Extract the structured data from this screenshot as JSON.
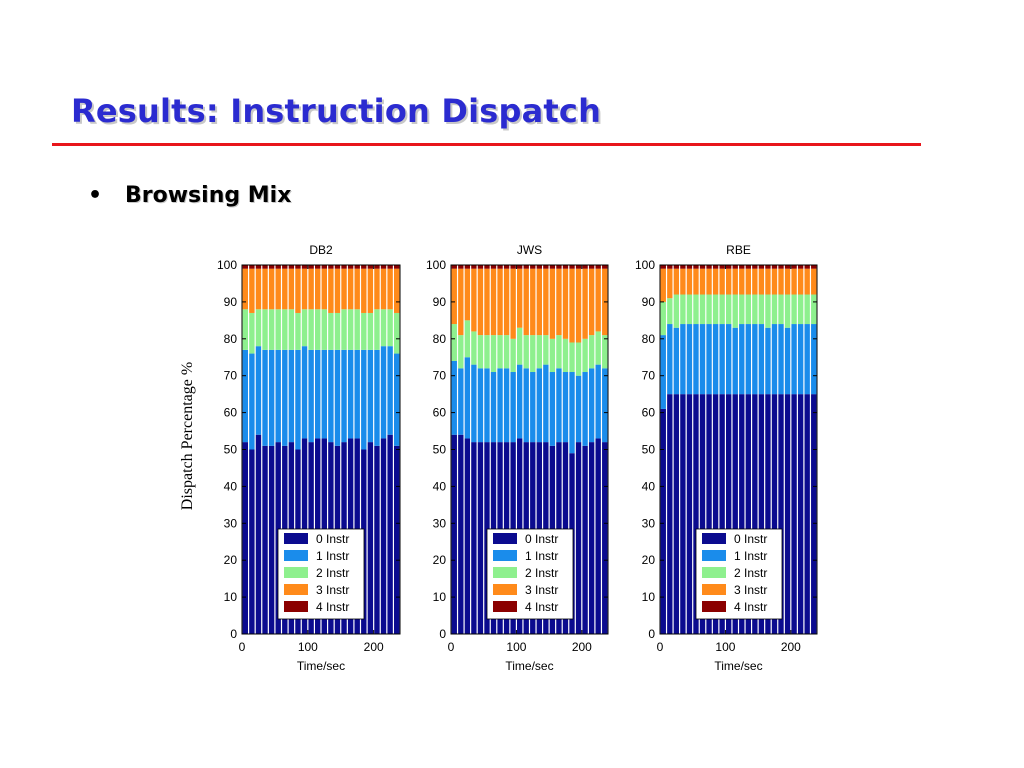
{
  "slide": {
    "title": "Results: Instruction Dispatch",
    "bullet": "Browsing Mix",
    "ylabel": "Dispatch Percentage %"
  },
  "colors": {
    "title": "#2b2bd0",
    "rule": "#e8151b",
    "series": [
      "#0b0b8f",
      "#1a8ceb",
      "#8ef08e",
      "#ff8a1a",
      "#8b0000"
    ]
  },
  "chart_data": [
    {
      "type": "bar",
      "stacked": true,
      "title": "DB2",
      "xlabel": "Time/sec",
      "ylabel": "Dispatch Percentage %",
      "ylim": [
        0,
        100
      ],
      "yticks": [
        0,
        10,
        20,
        30,
        40,
        50,
        60,
        70,
        80,
        90,
        100
      ],
      "xlim": [
        0,
        240
      ],
      "xticks": [
        0,
        100,
        200
      ],
      "legend": "bottom-center",
      "x": [
        5,
        15,
        25,
        35,
        45,
        55,
        65,
        75,
        85,
        95,
        105,
        115,
        125,
        135,
        145,
        155,
        165,
        175,
        185,
        195,
        205,
        215,
        225,
        235
      ],
      "series": [
        {
          "name": "0 Instr",
          "values": [
            52,
            50,
            54,
            51,
            51,
            52,
            51,
            52,
            50,
            53,
            52,
            53,
            53,
            52,
            51,
            52,
            53,
            53,
            50,
            52,
            51,
            53,
            54,
            51
          ]
        },
        {
          "name": "1 Instr",
          "values": [
            25,
            26,
            24,
            26,
            26,
            25,
            26,
            25,
            27,
            25,
            25,
            24,
            24,
            25,
            26,
            25,
            24,
            24,
            27,
            25,
            26,
            25,
            24,
            25
          ]
        },
        {
          "name": "2 Instr",
          "values": [
            11,
            11,
            10,
            11,
            11,
            11,
            11,
            11,
            10,
            10,
            11,
            11,
            11,
            10,
            10,
            11,
            11,
            11,
            10,
            10,
            11,
            10,
            10,
            11
          ]
        },
        {
          "name": "3 Instr",
          "values": [
            11,
            12,
            11,
            11,
            11,
            11,
            11,
            11,
            12,
            11,
            11,
            11,
            11,
            12,
            12,
            11,
            11,
            11,
            12,
            12,
            11,
            11,
            11,
            12
          ]
        },
        {
          "name": "4 Instr",
          "values": [
            1,
            1,
            1,
            1,
            1,
            1,
            1,
            1,
            1,
            1,
            1,
            1,
            1,
            1,
            1,
            1,
            1,
            1,
            1,
            1,
            1,
            1,
            1,
            1
          ]
        }
      ]
    },
    {
      "type": "bar",
      "stacked": true,
      "title": "JWS",
      "xlabel": "Time/sec",
      "ylabel": "",
      "ylim": [
        0,
        100
      ],
      "yticks": [
        0,
        10,
        20,
        30,
        40,
        50,
        60,
        70,
        80,
        90,
        100
      ],
      "xlim": [
        0,
        240
      ],
      "xticks": [
        0,
        100,
        200
      ],
      "legend": "bottom-center",
      "x": [
        5,
        15,
        25,
        35,
        45,
        55,
        65,
        75,
        85,
        95,
        105,
        115,
        125,
        135,
        145,
        155,
        165,
        175,
        185,
        195,
        205,
        215,
        225,
        235
      ],
      "series": [
        {
          "name": "0 Instr",
          "values": [
            54,
            54,
            53,
            52,
            52,
            52,
            52,
            52,
            52,
            52,
            53,
            52,
            52,
            52,
            52,
            51,
            52,
            52,
            49,
            52,
            51,
            52,
            53,
            52
          ]
        },
        {
          "name": "1 Instr",
          "values": [
            20,
            18,
            22,
            21,
            20,
            20,
            19,
            20,
            20,
            19,
            20,
            20,
            19,
            20,
            21,
            20,
            20,
            19,
            22,
            18,
            20,
            20,
            20,
            20
          ]
        },
        {
          "name": "2 Instr",
          "values": [
            10,
            9,
            10,
            9,
            9,
            9,
            10,
            9,
            9,
            9,
            10,
            9,
            10,
            9,
            8,
            9,
            9,
            9,
            8,
            9,
            9,
            9,
            9,
            9
          ]
        },
        {
          "name": "3 Instr",
          "values": [
            15,
            18,
            14,
            17,
            18,
            18,
            18,
            18,
            18,
            19,
            16,
            18,
            18,
            18,
            18,
            19,
            18,
            19,
            20,
            20,
            19,
            18,
            17,
            18
          ]
        },
        {
          "name": "4 Instr",
          "values": [
            1,
            1,
            1,
            1,
            1,
            1,
            1,
            1,
            1,
            1,
            1,
            1,
            1,
            1,
            1,
            1,
            1,
            1,
            1,
            1,
            1,
            1,
            1,
            1
          ]
        }
      ]
    },
    {
      "type": "bar",
      "stacked": true,
      "title": "RBE",
      "xlabel": "Time/sec",
      "ylabel": "",
      "ylim": [
        0,
        100
      ],
      "yticks": [
        0,
        10,
        20,
        30,
        40,
        50,
        60,
        70,
        80,
        90,
        100
      ],
      "xlim": [
        0,
        240
      ],
      "xticks": [
        0,
        100,
        200
      ],
      "legend": "bottom-center",
      "x": [
        5,
        15,
        25,
        35,
        45,
        55,
        65,
        75,
        85,
        95,
        105,
        115,
        125,
        135,
        145,
        155,
        165,
        175,
        185,
        195,
        205,
        215,
        225,
        235
      ],
      "series": [
        {
          "name": "0 Instr",
          "values": [
            61,
            65,
            65,
            65,
            65,
            65,
            65,
            65,
            65,
            65,
            65,
            65,
            65,
            65,
            65,
            65,
            65,
            65,
            65,
            65,
            65,
            65,
            65,
            65
          ]
        },
        {
          "name": "1 Instr",
          "values": [
            20,
            19,
            18,
            19,
            19,
            19,
            19,
            19,
            19,
            19,
            19,
            18,
            19,
            19,
            19,
            19,
            18,
            19,
            19,
            18,
            19,
            19,
            19,
            19
          ]
        },
        {
          "name": "2 Instr",
          "values": [
            9,
            7,
            9,
            8,
            8,
            8,
            8,
            8,
            8,
            8,
            8,
            9,
            8,
            8,
            8,
            8,
            9,
            8,
            8,
            9,
            8,
            8,
            8,
            8
          ]
        },
        {
          "name": "3 Instr",
          "values": [
            9,
            8,
            7,
            7,
            7,
            7,
            7,
            7,
            7,
            7,
            7,
            7,
            7,
            7,
            7,
            7,
            7,
            7,
            7,
            7,
            7,
            7,
            7,
            7
          ]
        },
        {
          "name": "4 Instr",
          "values": [
            1,
            1,
            1,
            1,
            1,
            1,
            1,
            1,
            1,
            1,
            1,
            1,
            1,
            1,
            1,
            1,
            1,
            1,
            1,
            1,
            1,
            1,
            1,
            1
          ]
        }
      ]
    }
  ]
}
